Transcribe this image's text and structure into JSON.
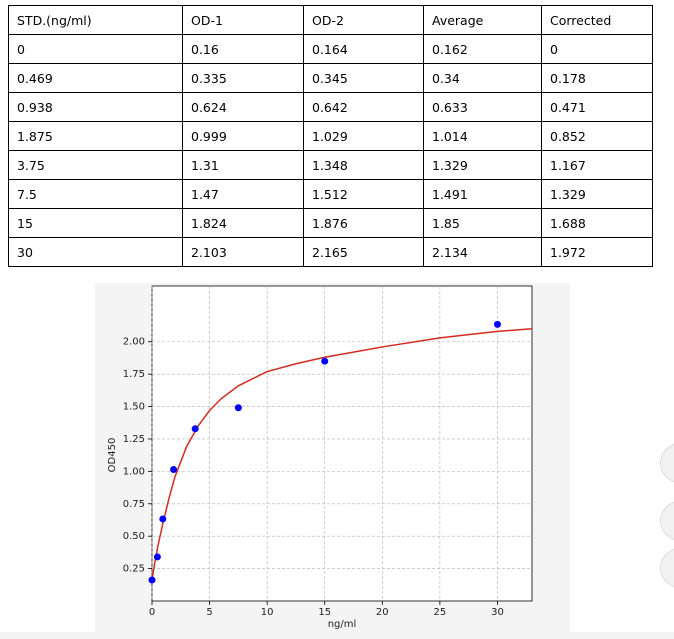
{
  "table": {
    "header": [
      "STD.(ng/ml)",
      "OD-1",
      "OD-2",
      "Average",
      "Corrected"
    ],
    "rows": [
      [
        "0",
        "0.16",
        "0.164",
        "0.162",
        "0"
      ],
      [
        "0.469",
        "0.335",
        "0.345",
        "0.34",
        "0.178"
      ],
      [
        "0.938",
        "0.624",
        "0.642",
        "0.633",
        "0.471"
      ],
      [
        "1.875",
        "0.999",
        "1.029",
        "1.014",
        "0.852"
      ],
      [
        "3.75",
        "1.31",
        "1.348",
        "1.329",
        "1.167"
      ],
      [
        "7.5",
        "1.47",
        "1.512",
        "1.491",
        "1.329"
      ],
      [
        "15",
        "1.824",
        "1.876",
        "1.85",
        "1.688"
      ],
      [
        "30",
        "2.103",
        "2.165",
        "2.134",
        "1.972"
      ]
    ]
  },
  "chart_data": {
    "type": "scatter",
    "x_label": "ng/ml",
    "y_label": "OD450",
    "xlim": [
      0,
      33
    ],
    "ylim": [
      0,
      2.43
    ],
    "xticks": [
      0,
      5,
      10,
      15,
      20,
      25,
      30
    ],
    "yticks": [
      0.25,
      {
        "value": 0.5,
        "label": "0.50"
      },
      0.75,
      {
        "value": 1,
        "label": "1.00"
      },
      1.25,
      {
        "value": 1.5,
        "label": "1.50"
      },
      1.75,
      {
        "value": 2,
        "label": "2.00"
      }
    ],
    "grid": true,
    "series": [
      {
        "type": "line",
        "color": "#d42a20",
        "x": [
          0,
          0.25,
          0.5,
          1,
          1.5,
          2,
          3,
          4,
          5,
          6,
          7.5,
          10,
          12.5,
          15,
          20,
          25,
          30,
          33
        ],
        "values": [
          0.16,
          0.3,
          0.42,
          0.62,
          0.8,
          0.96,
          1.19,
          1.35,
          1.47,
          1.56,
          1.66,
          1.77,
          1.83,
          1.88,
          1.96,
          2.03,
          2.08,
          2.1
        ]
      },
      {
        "type": "scatter",
        "color": "#0000ff",
        "x": [
          0,
          0.469,
          0.938,
          1.875,
          3.75,
          7.5,
          15,
          30
        ],
        "values": [
          0.162,
          0.34,
          0.633,
          1.014,
          1.329,
          1.491,
          1.85,
          2.134
        ]
      }
    ]
  }
}
